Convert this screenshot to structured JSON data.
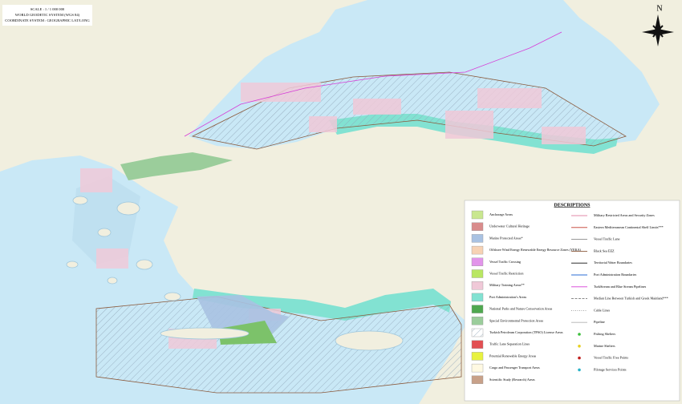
{
  "scale_box": {
    "lines": [
      "SCALE : 1 / 1 000 000",
      "WORLD GEODETIC SYSTEM (WGS 84)",
      "COORDINATE SYSTEM : GEOGRAPHIC LAT/LONG"
    ]
  },
  "compass": {
    "label": "N"
  },
  "legend": {
    "title": "DESCRIPTIONS",
    "left": [
      {
        "label": "Anchorage Areas",
        "color": "#c9e78f"
      },
      {
        "label": "Underwater Cultural Heritage",
        "color": "#d98c8c"
      },
      {
        "label": "Marine Protected Areas*",
        "color": "#a9c2e2"
      },
      {
        "label": "Offshore Wind Energy Renewable Energy Resource Zones (YEKA)",
        "color": "#f7d2b4"
      },
      {
        "label": "Vessel Traffic Crossing",
        "color": "#e294ea"
      },
      {
        "label": "Vessel Traffic Restriction",
        "color": "#b9e762"
      },
      {
        "label": "Military Training Areas**",
        "color": "#f0c9d8"
      },
      {
        "label": "Port Administration's Areas",
        "color": "#82e2d2"
      },
      {
        "label": "National Parks and Nature Conservation Areas",
        "color": "#4fa84f"
      },
      {
        "label": "Special Environmental Protection Areas",
        "color": "#9bcd9b"
      },
      {
        "label": "Turkish Petroleum Corporation (TPAO) License Areas",
        "color": "#ffffff",
        "fill_style": "hatch"
      },
      {
        "label": "Traffic Lane Separation Lines",
        "color": "#e24f52"
      },
      {
        "label": "Potential Renewable Energy Areas",
        "color": "#e8f23f"
      },
      {
        "label": "Cargo and Passenger Transport Areas",
        "color": "#fff9e2"
      },
      {
        "label": "Scientific Study (Research) Areas",
        "color": "#c8a189"
      }
    ],
    "right": [
      {
        "label": "Military Restricted Areas and Security Zones",
        "color": "#e08aa8",
        "mark": "line"
      },
      {
        "label": "Eastern Mediterranean Continental Shelf Limits***",
        "color": "#c0392b",
        "mark": "line"
      },
      {
        "label": "Vessel Traffic Lane",
        "color": "#8a8a8a",
        "mark": "line"
      },
      {
        "label": "Black Sea EEZ",
        "color": "#8b5a3c",
        "mark": "line"
      },
      {
        "label": "Territorial Water Boundaries",
        "color": "#111111",
        "mark": "line"
      },
      {
        "label": "Port Administration Boundaries",
        "color": "#2b6cd6",
        "mark": "line"
      },
      {
        "label": "TurkStream and Blue Stream Pipelines",
        "color": "#d63bd6",
        "mark": "line"
      },
      {
        "label": "Median Line Between Turkish and Greek Mainland***",
        "color": "#7a7a7a",
        "mark": "dash"
      },
      {
        "label": "Cable Lines",
        "color": "#9a9a9a",
        "mark": "dot-line"
      },
      {
        "label": "Pipeline",
        "color": "#b0b0b0",
        "mark": "line"
      },
      {
        "label": "Fishing Shelters",
        "color": "#3cbf3c",
        "mark": "dot"
      },
      {
        "label": "Marine Shelters",
        "color": "#e8d020",
        "mark": "dot"
      },
      {
        "label": "Vessel Traffic Free Points",
        "color": "#c0201e",
        "mark": "dot"
      },
      {
        "label": "Pilotage Services Points",
        "color": "#2ab3c8",
        "mark": "dot"
      }
    ]
  }
}
